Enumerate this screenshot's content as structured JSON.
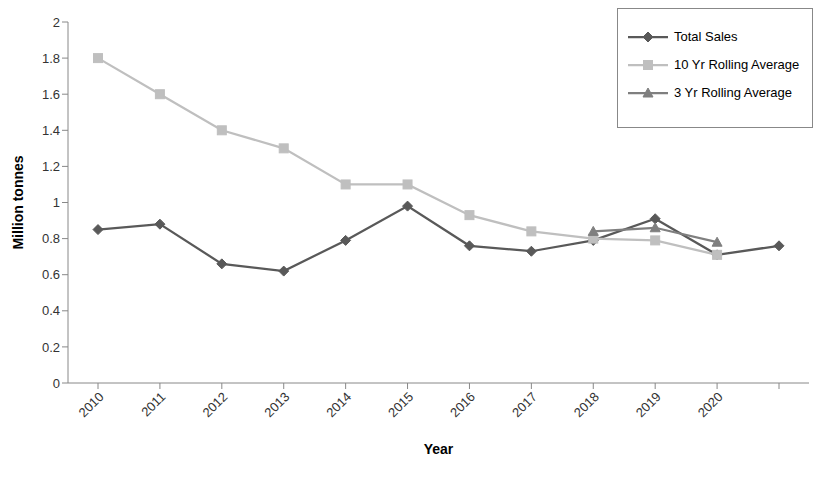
{
  "chart_data": {
    "type": "line",
    "x_label": "Year",
    "y_label": "Million tonnes",
    "categories": [
      "2010",
      "2011",
      "2012",
      "2013",
      "2014",
      "2015",
      "2016",
      "2017",
      "2018",
      "2019",
      "2020",
      null
    ],
    "series": [
      {
        "name": "Total Sales",
        "color": "#595959",
        "marker": "diamond",
        "line_style": "solid",
        "values": [
          0.85,
          0.88,
          0.66,
          0.62,
          0.79,
          0.98,
          0.76,
          0.73,
          0.79,
          0.91,
          0.71,
          0.76
        ]
      },
      {
        "name": "10 Yr Rolling Average",
        "color": "#bfbfbf",
        "marker": "square",
        "line_style": "solid",
        "values": [
          1.8,
          1.6,
          1.4,
          1.3,
          1.1,
          1.1,
          0.93,
          0.84,
          0.8,
          0.79,
          0.71,
          null
        ]
      },
      {
        "name": "3 Yr Rolling Average",
        "color": "#7f7f7f",
        "marker": "triangle",
        "line_style": "solid",
        "values": [
          null,
          null,
          null,
          null,
          null,
          null,
          null,
          null,
          0.84,
          0.86,
          0.78,
          null
        ]
      }
    ],
    "ylim": [
      0,
      2
    ],
    "yticks": [
      0,
      0.2,
      0.4,
      0.6,
      0.8,
      1,
      1.2,
      1.4,
      1.6,
      1.8,
      2
    ],
    "grid": false,
    "legend": "top-right"
  }
}
